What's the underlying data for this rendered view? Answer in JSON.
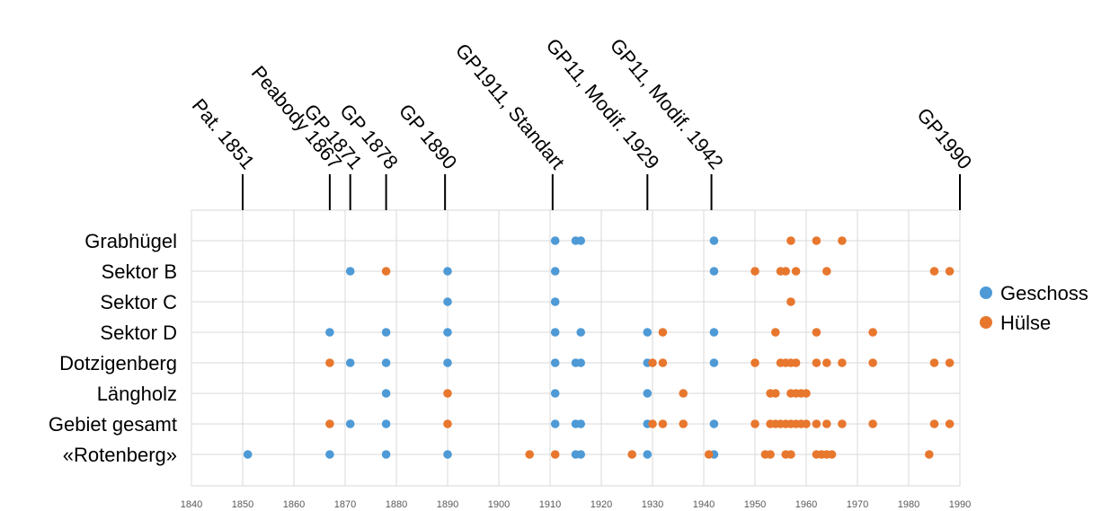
{
  "chart_data": {
    "type": "scatter",
    "xlim": [
      1840,
      1990
    ],
    "x_ticks": [
      "1840",
      "1850",
      "1860",
      "1870",
      "1880",
      "1890",
      "1900",
      "1910",
      "1920",
      "1930",
      "1940",
      "1950",
      "1960",
      "1970",
      "1980",
      "1990"
    ],
    "categories": [
      "Grabhügel",
      "Sektor B",
      "Sektor C",
      "Sektor D",
      "Dotzigenberg",
      "Längholz",
      "Gebiet gesamt",
      "«Rotenberg»"
    ],
    "grid": true,
    "legend_position": "right",
    "events": [
      {
        "label": "Pat. 1851",
        "year": 1850
      },
      {
        "label": "Peabody 1867",
        "year": 1867
      },
      {
        "label": "GP 1871",
        "year": 1871
      },
      {
        "label": "GP 1878",
        "year": 1878
      },
      {
        "label": "GP 1890",
        "year": 1889.5
      },
      {
        "label": "GP1911, Standart",
        "year": 1910.5
      },
      {
        "label": "GP11, Modif. 1929",
        "year": 1929
      },
      {
        "label": "GP11, Modif. 1942",
        "year": 1941.5
      },
      {
        "label": "GP1990",
        "year": 1990
      }
    ],
    "series": [
      {
        "name": "Geschoss",
        "color": "#4e9ad6",
        "points": [
          {
            "category": "Grabhügel",
            "x": [
              1911,
              1915,
              1916,
              1942
            ]
          },
          {
            "category": "Sektor B",
            "x": [
              1871,
              1890,
              1911,
              1942
            ]
          },
          {
            "category": "Sektor C",
            "x": [
              1890,
              1911
            ]
          },
          {
            "category": "Sektor D",
            "x": [
              1867,
              1878,
              1890,
              1911,
              1916,
              1929,
              1942
            ]
          },
          {
            "category": "Dotzigenberg",
            "x": [
              1871,
              1878,
              1890,
              1911,
              1915,
              1916,
              1929,
              1942
            ]
          },
          {
            "category": "Längholz",
            "x": [
              1878,
              1911,
              1929
            ]
          },
          {
            "category": "Gebiet gesamt",
            "x": [
              1871,
              1878,
              1911,
              1915,
              1916,
              1929,
              1942
            ]
          },
          {
            "category": "«Rotenberg»",
            "x": [
              1851,
              1867,
              1878,
              1890,
              1915,
              1916,
              1929,
              1942
            ]
          }
        ]
      },
      {
        "name": "Hülse",
        "color": "#e8772e",
        "points": [
          {
            "category": "Grabhügel",
            "x": [
              1957,
              1962,
              1967
            ]
          },
          {
            "category": "Sektor B",
            "x": [
              1878,
              1950,
              1955,
              1956,
              1958,
              1964,
              1985,
              1988
            ]
          },
          {
            "category": "Sektor C",
            "x": [
              1957
            ]
          },
          {
            "category": "Sektor D",
            "x": [
              1932,
              1954,
              1962,
              1973
            ]
          },
          {
            "category": "Dotzigenberg",
            "x": [
              1867,
              1930,
              1932,
              1950,
              1955,
              1956,
              1957,
              1958,
              1962,
              1964,
              1967,
              1973,
              1985,
              1988
            ]
          },
          {
            "category": "Längholz",
            "x": [
              1890,
              1936,
              1953,
              1954,
              1957,
              1958,
              1959,
              1960
            ]
          },
          {
            "category": "Gebiet gesamt",
            "x": [
              1867,
              1890,
              1930,
              1932,
              1936,
              1950,
              1953,
              1954,
              1955,
              1956,
              1957,
              1958,
              1959,
              1960,
              1962,
              1964,
              1967,
              1973,
              1985,
              1988
            ]
          },
          {
            "category": "«Rotenberg»",
            "x": [
              1906,
              1911,
              1926,
              1941,
              1952,
              1953,
              1956,
              1957,
              1962,
              1963,
              1964,
              1965,
              1984
            ]
          }
        ]
      }
    ]
  }
}
